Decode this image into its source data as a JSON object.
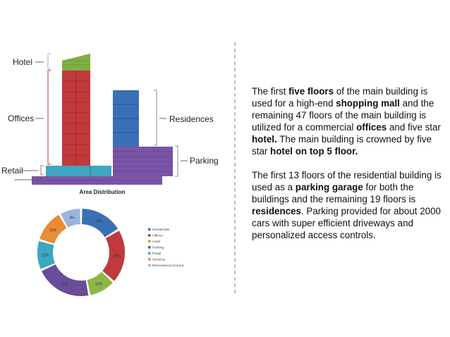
{
  "labels": {
    "hotel": "Hotel",
    "offices": "Offices",
    "residences": "Residences",
    "parking": "Parking",
    "retail": "Retail"
  },
  "chart_data": {
    "type": "donut",
    "title": "Area Distribution",
    "categories": [
      "Residential",
      "Offices",
      "Hotel",
      "Parking",
      "Retail",
      "Services",
      "Recreational Ground"
    ],
    "values": [
      16,
      20,
      10,
      21,
      11,
      12,
      8
    ],
    "value_labels": [
      "16%",
      "20%",
      "10%",
      "21%",
      "11%",
      "12%",
      "8%"
    ],
    "colors": [
      "#3b6fb6",
      "#c0393b",
      "#8db645",
      "#6b4c9a",
      "#3ea6c0",
      "#ea8c35",
      "#9ab6dc"
    ],
    "legend": "right"
  },
  "text": {
    "paragraphs": [
      [
        {
          "text": "The first ",
          "bold": false
        },
        {
          "text": "five floors",
          "bold": true
        },
        {
          "text": " of the main building is used for a high-end ",
          "bold": false
        },
        {
          "text": "shopping mall",
          "bold": true
        },
        {
          "text": " and the remaining 47 floors of the main building is utilized for a commercial ",
          "bold": false
        },
        {
          "text": "offices",
          "bold": true
        },
        {
          "text": " and five star ",
          "bold": false
        },
        {
          "text": "hotel.",
          "bold": true
        },
        {
          "text": " The main building is crowned by five star ",
          "bold": false
        },
        {
          "text": "hotel on top 5 floor.",
          "bold": true
        }
      ],
      [
        {
          "text": "The first 13 floors of the residential building is used as a ",
          "bold": false
        },
        {
          "text": "parking garage",
          "bold": true
        },
        {
          "text": " for both the buildings and the remaining 19 floors is ",
          "bold": false
        },
        {
          "text": "residences",
          "bold": true
        },
        {
          "text": ". Parking provided for about 2000 cars with super efficient driveways and personalized access controls.",
          "bold": false
        }
      ]
    ]
  }
}
